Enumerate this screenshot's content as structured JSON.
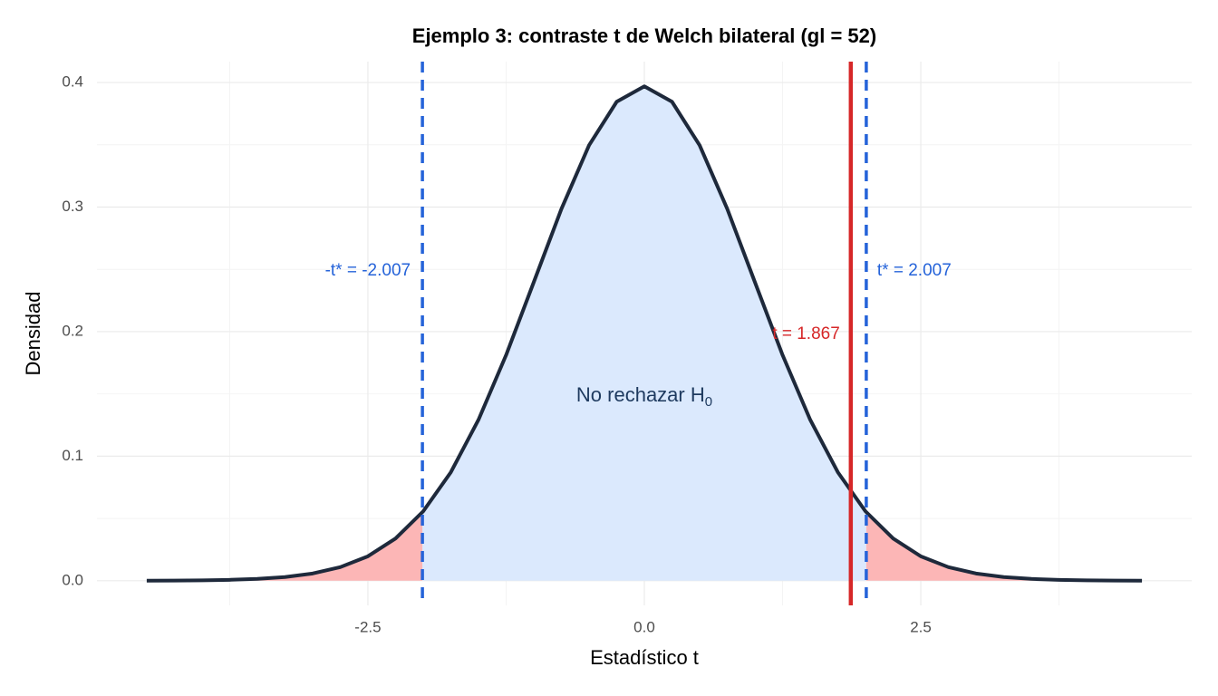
{
  "chart_data": {
    "type": "density",
    "title": "Ejemplo 3: contraste t de Welch bilateral (gl = 52)",
    "x_label": "Estadístico t",
    "y_label": "Densidad",
    "x": [
      -4.5,
      -4.25,
      -4,
      -3.75,
      -3.5,
      -3.25,
      -3,
      -2.75,
      -2.5,
      -2.25,
      -2,
      -1.75,
      -1.5,
      -1.25,
      -1,
      -0.75,
      -0.5,
      -0.25,
      0,
      0.25,
      0.5,
      0.75,
      1,
      1.25,
      1.5,
      1.75,
      2,
      2.25,
      2.5,
      2.75,
      3,
      3.25,
      3.5,
      3.75,
      4,
      4.25,
      4.5
    ],
    "values": [
      7e-05,
      0.00015,
      0.00033,
      0.0007,
      0.00146,
      0.00295,
      0.00578,
      0.0109,
      0.0196,
      0.0339,
      0.0557,
      0.0871,
      0.1292,
      0.1812,
      0.2397,
      0.2985,
      0.3496,
      0.3846,
      0.397,
      0.3846,
      0.3496,
      0.2985,
      0.2397,
      0.1812,
      0.1292,
      0.0871,
      0.0557,
      0.0339,
      0.0196,
      0.0109,
      0.00578,
      0.00295,
      0.00146,
      0.0007,
      0.00033,
      0.00015,
      7e-05
    ],
    "line_color": "#1e293b",
    "accept_color": "#dbe9fd",
    "reject_color": "#fcb6b6",
    "critical_values": [
      -2.007,
      2.007
    ],
    "critical_labels": [
      "-t* = -2.007",
      "t* = 2.007"
    ],
    "critical_color": "#2563d9",
    "t_stat": 1.867,
    "t_label": "t = 1.867",
    "t_color": "#d62728",
    "region_label": {
      "text": "No rechazar H",
      "subscript": "0"
    },
    "xlim": [
      -4.95,
      4.95
    ],
    "ylim": [
      -0.0198,
      0.4168
    ],
    "xticks": [
      -2.5,
      {
        "value": 0,
        "label": "0.0"
      },
      2.5
    ],
    "yticks": [
      {
        "value": 0,
        "label": "0.0"
      },
      0.1,
      0.2,
      0.3,
      0.4
    ],
    "grid": true,
    "minor_grid": true
  }
}
